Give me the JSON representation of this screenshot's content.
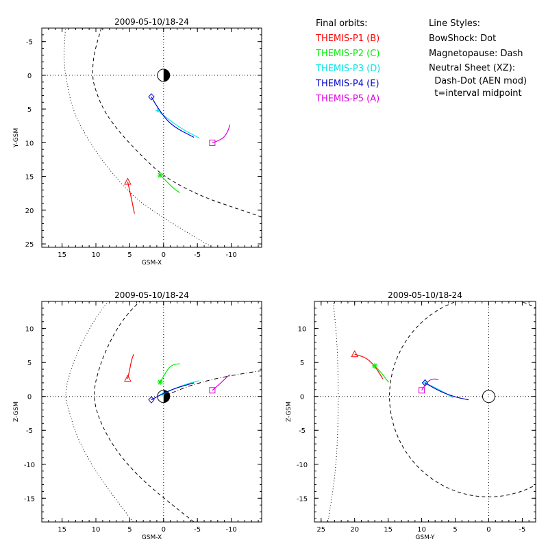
{
  "legend": {
    "orbits_title": "Final orbits:",
    "probes": [
      {
        "label": "THEMIS-P1 (B)",
        "color": "#ff0000"
      },
      {
        "label": "THEMIS-P2 (C)",
        "color": "#00ee00"
      },
      {
        "label": "THEMIS-P3 (D)",
        "color": "#00e5e5"
      },
      {
        "label": "THEMIS-P4 (E)",
        "color": "#0000cc"
      },
      {
        "label": "THEMIS-P5 (A)",
        "color": "#e000e0"
      }
    ],
    "styles_title": "Line Styles:",
    "styles": [
      "BowShock: Dot",
      "Magnetopause: Dash",
      "Neutral Sheet (XZ):",
      "  Dash-Dot (AEN mod)",
      "  t=interval midpoint"
    ]
  },
  "chart_data": [
    {
      "type": "scatter",
      "title": "2009-05-10/18-24",
      "xlabel": "GSM-X",
      "ylabel": "Y-GSM",
      "xlim": [
        18,
        -14.5
      ],
      "ylim": [
        -7,
        25.5
      ],
      "y_reversed": true,
      "xticks": [
        15,
        10,
        5,
        0,
        -5,
        -10
      ],
      "yticks": [
        -5,
        0,
        5,
        10,
        15,
        20,
        25
      ],
      "earth_style": "day-night",
      "bowshock": [
        [
          -14.5,
          29.5
        ],
        [
          -8,
          26
        ],
        [
          -3,
          23
        ],
        [
          1,
          20.5
        ],
        [
          4.5,
          18
        ],
        [
          8.5,
          13.5
        ],
        [
          11.5,
          9
        ],
        [
          13.5,
          5
        ],
        [
          14.5,
          0
        ],
        [
          14.7,
          -2
        ],
        [
          14.7,
          -4
        ],
        [
          14.5,
          -7
        ]
      ],
      "magnetopause": [
        [
          -14.5,
          21
        ],
        [
          -10,
          19.5
        ],
        [
          -5,
          17.7
        ],
        [
          0,
          15
        ],
        [
          3,
          12.2
        ],
        [
          6.5,
          8.5
        ],
        [
          9,
          5
        ],
        [
          10.3,
          1.5
        ],
        [
          10.5,
          0
        ],
        [
          10.4,
          -2.5
        ],
        [
          9.8,
          -5
        ],
        [
          9.2,
          -7
        ]
      ],
      "orbits": [
        {
          "probe": 0,
          "marker": "triangle",
          "points": [
            [
              5.3,
              15.8
            ],
            [
              4.8,
              18
            ],
            [
              4.3,
              20.5
            ]
          ]
        },
        {
          "probe": 1,
          "marker": "asterisk",
          "points": [
            [
              0.5,
              14.8
            ],
            [
              -0.5,
              15.8
            ],
            [
              -1.5,
              16.8
            ],
            [
              -2.4,
              17.4
            ]
          ]
        },
        {
          "probe": 2,
          "marker": "plus",
          "points": [
            [
              0.9,
              5.2
            ],
            [
              -2,
              7.6
            ],
            [
              -5.3,
              9.3
            ]
          ]
        },
        {
          "probe": 3,
          "marker": "diamond",
          "points": [
            [
              1.8,
              3.2
            ],
            [
              0.8,
              5
            ],
            [
              -1.2,
              7.5
            ],
            [
              -4.5,
              9.2
            ]
          ]
        },
        {
          "probe": 4,
          "marker": "square",
          "points": [
            [
              -7.2,
              10
            ],
            [
              -8.6,
              9.6
            ],
            [
              -9.5,
              8.4
            ],
            [
              -9.8,
              7.3
            ]
          ]
        }
      ]
    },
    {
      "type": "scatter",
      "title": "2009-05-10/18-24",
      "xlabel": "GSM-X",
      "ylabel": "Z-GSM",
      "xlim": [
        18,
        -14.5
      ],
      "ylim": [
        -18.5,
        14
      ],
      "y_reversed": false,
      "xticks": [
        15,
        10,
        5,
        0,
        -5,
        -10
      ],
      "yticks": [
        -15,
        -10,
        -5,
        0,
        5,
        10
      ],
      "earth_style": "day-night",
      "bowshock": [
        [
          4.5,
          -18.5
        ],
        [
          8,
          -14
        ],
        [
          11,
          -9.5
        ],
        [
          13,
          -5.5
        ],
        [
          14.3,
          -1
        ],
        [
          14.5,
          0
        ],
        [
          14.3,
          2
        ],
        [
          13,
          6
        ],
        [
          11,
          10
        ],
        [
          9,
          13
        ],
        [
          8.2,
          14
        ]
      ],
      "magnetopause": [
        [
          -4.5,
          -18.5
        ],
        [
          0,
          -15
        ],
        [
          4,
          -11.5
        ],
        [
          7,
          -8
        ],
        [
          9.3,
          -4
        ],
        [
          10.5,
          0
        ],
        [
          9.5,
          4.5
        ],
        [
          7.5,
          9
        ],
        [
          5.5,
          12
        ],
        [
          3.5,
          14
        ]
      ],
      "neutral_sheet": [
        [
          0,
          0
        ],
        [
          -3,
          1.3
        ],
        [
          -6,
          2.2
        ],
        [
          -9,
          2.9
        ],
        [
          -12,
          3.4
        ],
        [
          -14.5,
          3.8
        ]
      ],
      "orbits": [
        {
          "probe": 0,
          "marker": "triangle",
          "points": [
            [
              5.3,
              2.6
            ],
            [
              5,
              4
            ],
            [
              4.7,
              5.5
            ],
            [
              4.4,
              6.2
            ]
          ]
        },
        {
          "probe": 1,
          "marker": "asterisk",
          "points": [
            [
              0.5,
              2.1
            ],
            [
              -0.3,
              3.5
            ],
            [
              -1,
              4.5
            ],
            [
              -2,
              4.8
            ],
            [
              -2.4,
              4.8
            ]
          ]
        },
        {
          "probe": 2,
          "marker": "plus",
          "points": [
            [
              0.2,
              0.3
            ],
            [
              -2.5,
              1.6
            ],
            [
              -5.2,
              2.3
            ]
          ]
        },
        {
          "probe": 3,
          "marker": "diamond",
          "points": [
            [
              1.8,
              -0.5
            ],
            [
              0,
              0.5
            ],
            [
              -2,
              1.3
            ],
            [
              -4.5,
              2
            ]
          ]
        },
        {
          "probe": 4,
          "marker": "square",
          "points": [
            [
              -7.2,
              0.9
            ],
            [
              -8.5,
              2
            ],
            [
              -9.3,
              2.8
            ],
            [
              -9.8,
              3.2
            ]
          ]
        }
      ]
    },
    {
      "type": "scatter",
      "title": "2009-05-10/18-24",
      "xlabel": "GSM-Y",
      "ylabel": "Z-GSM",
      "xlim": [
        26,
        -7
      ],
      "ylim": [
        -18.5,
        14
      ],
      "y_reversed": false,
      "xticks": [
        25,
        20,
        15,
        10,
        5,
        0,
        -5
      ],
      "yticks": [
        -15,
        -10,
        -5,
        0,
        5,
        10
      ],
      "earth_style": "circle",
      "bowshock": [
        [
          24,
          -18.5
        ],
        [
          23.2,
          -14
        ],
        [
          22.6,
          -8
        ],
        [
          22.4,
          0
        ],
        [
          22.6,
          8
        ],
        [
          23.2,
          14
        ]
      ],
      "magnetopause_circle": {
        "center": [
          0,
          0
        ],
        "radius": 14.8
      },
      "orbits": [
        {
          "probe": 0,
          "marker": "triangle",
          "points": [
            [
              20,
              6.2
            ],
            [
              18.5,
              5.9
            ],
            [
              17,
              4.5
            ],
            [
              15.8,
              2.6
            ]
          ]
        },
        {
          "probe": 1,
          "marker": "asterisk",
          "points": [
            [
              17,
              4.5
            ],
            [
              16,
              3.5
            ],
            [
              15.3,
              2.5
            ],
            [
              14.9,
              2.1
            ]
          ]
        },
        {
          "probe": 2,
          "marker": "plus",
          "points": [
            [
              9.5,
              2
            ],
            [
              7.5,
              1.1
            ],
            [
              5.3,
              -0.2
            ]
          ]
        },
        {
          "probe": 3,
          "marker": "diamond",
          "points": [
            [
              9.5,
              2
            ],
            [
              7.5,
              0.8
            ],
            [
              5,
              -0.1
            ],
            [
              3,
              -0.5
            ]
          ]
        },
        {
          "probe": 4,
          "marker": "square",
          "points": [
            [
              10,
              0.9
            ],
            [
              9.3,
              2
            ],
            [
              8.5,
              2.6
            ],
            [
              7.5,
              2.5
            ]
          ]
        }
      ]
    }
  ]
}
